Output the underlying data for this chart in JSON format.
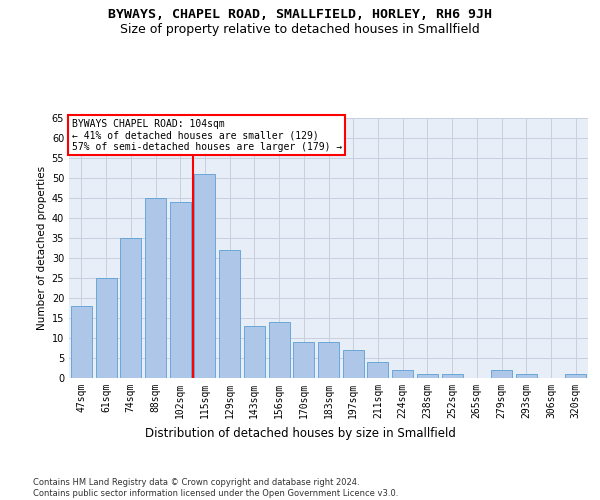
{
  "title": "BYWAYS, CHAPEL ROAD, SMALLFIELD, HORLEY, RH6 9JH",
  "subtitle": "Size of property relative to detached houses in Smallfield",
  "xlabel": "Distribution of detached houses by size in Smallfield",
  "ylabel": "Number of detached properties",
  "categories": [
    "47sqm",
    "61sqm",
    "74sqm",
    "88sqm",
    "102sqm",
    "115sqm",
    "129sqm",
    "143sqm",
    "156sqm",
    "170sqm",
    "183sqm",
    "197sqm",
    "211sqm",
    "224sqm",
    "238sqm",
    "252sqm",
    "265sqm",
    "279sqm",
    "293sqm",
    "306sqm",
    "320sqm"
  ],
  "values": [
    18,
    25,
    35,
    45,
    44,
    51,
    32,
    13,
    14,
    9,
    9,
    7,
    4,
    2,
    1,
    1,
    0,
    2,
    1,
    0,
    1
  ],
  "bar_color": "#aec6e8",
  "bar_edge_color": "#5a9fd4",
  "annotation_text": "BYWAYS CHAPEL ROAD: 104sqm\n← 41% of detached houses are smaller (129)\n57% of semi-detached houses are larger (179) →",
  "annotation_box_color": "white",
  "annotation_box_edge_color": "red",
  "vline_color": "red",
  "vline_x_index": 4,
  "ylim": [
    0,
    65
  ],
  "yticks": [
    0,
    5,
    10,
    15,
    20,
    25,
    30,
    35,
    40,
    45,
    50,
    55,
    60,
    65
  ],
  "grid_color": "#c8d0e0",
  "background_color": "#e8eef8",
  "footer": "Contains HM Land Registry data © Crown copyright and database right 2024.\nContains public sector information licensed under the Open Government Licence v3.0.",
  "title_fontsize": 9.5,
  "subtitle_fontsize": 9,
  "xlabel_fontsize": 8.5,
  "ylabel_fontsize": 7.5,
  "tick_fontsize": 7,
  "footer_fontsize": 6
}
